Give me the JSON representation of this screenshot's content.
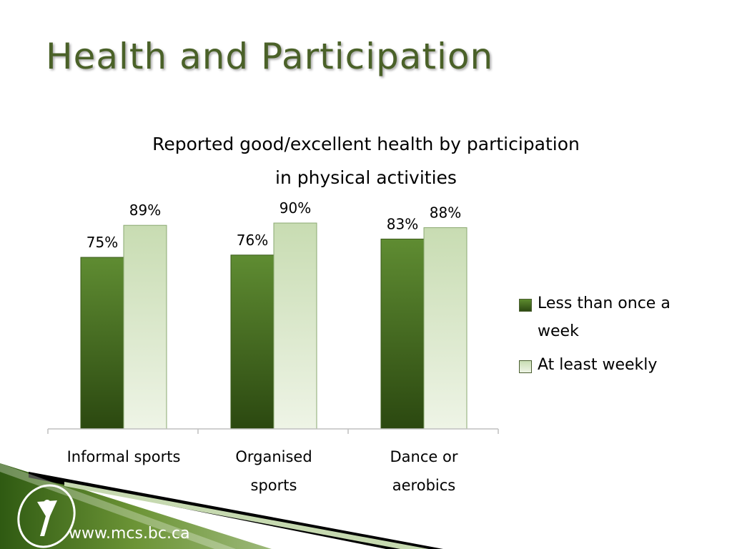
{
  "slide": {
    "title": "Health and Participation",
    "website": "www.mcs.bc.ca"
  },
  "colors": {
    "title": "#4a6128",
    "series_dark": "#3e6218",
    "series_light": "#d7e6c6",
    "footer_green": "#4f7a23"
  },
  "icons": [
    "mcs-logo-icon"
  ],
  "chart_data": {
    "type": "bar",
    "title_lines": [
      "Reported good/excellent health by  participation",
      "in physical activities"
    ],
    "categories": [
      [
        "Informal sports"
      ],
      [
        "Organised",
        "sports"
      ],
      [
        "Dance or",
        "aerobics"
      ]
    ],
    "series": [
      {
        "name": "Less than once a week",
        "legend_lines": [
          "Less than once a",
          "week"
        ],
        "values": [
          75,
          76,
          83
        ],
        "labels": [
          "75%",
          "76%",
          "83%"
        ]
      },
      {
        "name": "At least weekly",
        "legend_lines": [
          "At least weekly"
        ],
        "values": [
          89,
          90,
          88
        ],
        "labels": [
          "89%",
          "90%",
          "88%"
        ]
      }
    ],
    "ylim": [
      0,
      100
    ],
    "grid": false,
    "legend_position": "right"
  }
}
